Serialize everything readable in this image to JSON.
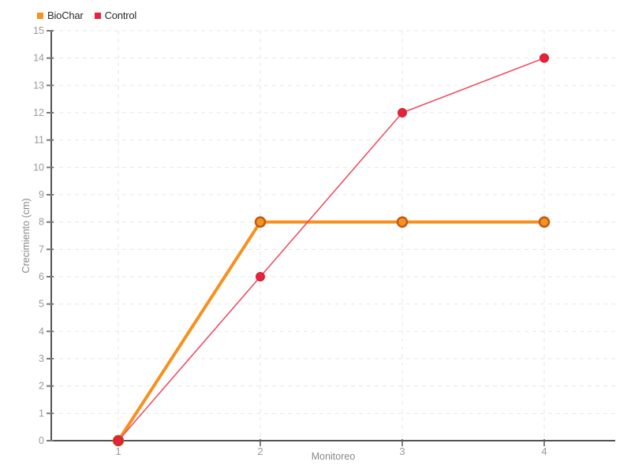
{
  "legend": {
    "position": "top-left",
    "items": [
      {
        "label": "BioChar",
        "color": "#F6921E"
      },
      {
        "label": "Control",
        "color": "#E5233A"
      }
    ]
  },
  "chart_data": {
    "type": "line",
    "x": [
      1,
      2,
      3,
      4
    ],
    "series": [
      {
        "name": "BioChar",
        "values": [
          0,
          8,
          8,
          8
        ],
        "line_color": "#F6901E",
        "line_width": 4,
        "marker_fill": "#F6921E",
        "marker_stroke": "#C05A17",
        "marker_stroke_width": 2.5,
        "marker_radius": 6
      },
      {
        "name": "Control",
        "values": [
          0,
          6,
          12,
          14
        ],
        "line_color": "#F2445A",
        "line_width": 1.5,
        "marker_fill": "#E5233A",
        "marker_stroke": "#CE1F33",
        "marker_stroke_width": 1,
        "marker_radius": 5.5
      }
    ],
    "xlabel": "Monitoreo",
    "ylabel": "Crecimiento (cm)",
    "x_ticks": [
      1,
      2,
      3,
      4
    ],
    "ylim": [
      0,
      15
    ],
    "y_tick_step": 1,
    "grid": true,
    "grid_style": "dashed",
    "legend_position": "top-left",
    "axis_color": "#1a1a1a",
    "grid_color": "#e7e7e7",
    "tick_mark_color": "#777777",
    "tick_label_color": "#999999",
    "axis_label_color": "#888888"
  }
}
